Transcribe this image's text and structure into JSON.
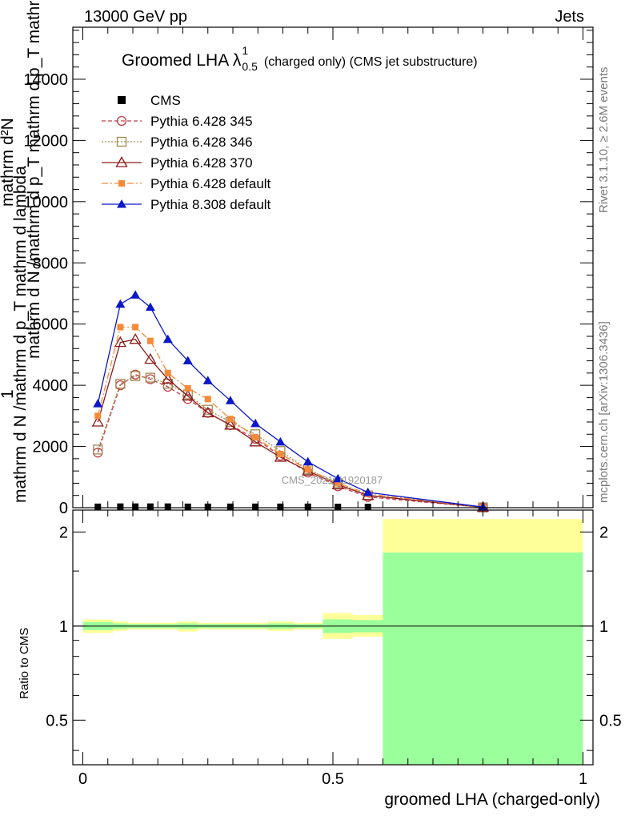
{
  "header": {
    "left": "13000 GeV pp",
    "right": "Jets"
  },
  "side": {
    "events": "Rivet 3.1.10, ≥ 2.6M events",
    "source": "mcplots.cern.ch [arXiv:1306.3436]"
  },
  "watermark": "CMS_2021_I1920187",
  "chart_data": [
    {
      "type": "line",
      "title": "Groomed LHA λ",
      "title_sup": "1",
      "title_sub": "0.5",
      "subtitle": "(charged only) (CMS jet substructure)",
      "ylabel_lines": [
        "mathrm d N /mathrm d p_T mathrm d lambda",
        "1",
        "mathrm d N /mathrm d p_T mathrm d p_T mathrm d lambda",
        "mathrm d²N"
      ],
      "xlim": [
        -0.02,
        1.02
      ],
      "ylim": [
        0,
        15700
      ],
      "yticks": [
        0,
        2000,
        4000,
        6000,
        8000,
        10000,
        12000,
        14000
      ],
      "ytick_labels": [
        "0",
        "2000",
        "4000",
        "6000",
        "8000",
        "10000",
        "12000",
        "14000"
      ],
      "legend_position": "top-left",
      "cms": {
        "name": "CMS",
        "color": "#000000",
        "x": [
          0.03,
          0.075,
          0.105,
          0.135,
          0.17,
          0.21,
          0.25,
          0.295,
          0.345,
          0.395,
          0.45,
          0.51,
          0.57
        ],
        "values": [
          30,
          35,
          35,
          35,
          35,
          30,
          30,
          30,
          30,
          30,
          30,
          25,
          25
        ]
      },
      "series": [
        {
          "name": "Pythia 6.428 345",
          "color": "#c0404a",
          "dash": "5,3",
          "marker": "open-circle",
          "x": [
            0.03,
            0.075,
            0.105,
            0.135,
            0.17,
            0.21,
            0.25,
            0.295,
            0.345,
            0.395,
            0.45,
            0.51,
            0.57,
            0.8
          ],
          "values": [
            1800,
            4000,
            4350,
            4200,
            3950,
            3550,
            3100,
            2700,
            2250,
            1700,
            1150,
            700,
            350,
            10
          ]
        },
        {
          "name": "Pythia 6.428 346",
          "color": "#a08a50",
          "dash": "2,2",
          "marker": "open-square",
          "x": [
            0.03,
            0.075,
            0.105,
            0.135,
            0.17,
            0.21,
            0.25,
            0.295,
            0.345,
            0.395,
            0.45,
            0.51,
            0.57,
            0.8
          ],
          "values": [
            1900,
            4050,
            4300,
            4250,
            4050,
            3700,
            3200,
            2800,
            2400,
            1850,
            1250,
            800,
            400,
            10
          ]
        },
        {
          "name": "Pythia 6.428 370",
          "color": "#8b1a1a",
          "dash": "",
          "marker": "open-triangle",
          "x": [
            0.03,
            0.075,
            0.105,
            0.135,
            0.17,
            0.21,
            0.25,
            0.295,
            0.345,
            0.395,
            0.45,
            0.51,
            0.57,
            0.8
          ],
          "values": [
            2800,
            5400,
            5500,
            4850,
            4200,
            3650,
            3100,
            2700,
            2150,
            1650,
            1200,
            750,
            400,
            10
          ]
        },
        {
          "name": "Pythia 6.428 default",
          "color": "#f58a3a",
          "dash": "8,3,2,3",
          "marker": "filled-square",
          "x": [
            0.03,
            0.075,
            0.105,
            0.135,
            0.17,
            0.21,
            0.25,
            0.295,
            0.345,
            0.395,
            0.45,
            0.51,
            0.57,
            0.8
          ],
          "values": [
            3000,
            5900,
            5900,
            5450,
            4400,
            3900,
            3550,
            2900,
            2300,
            1750,
            1250,
            800,
            450,
            15
          ]
        },
        {
          "name": "Pythia 8.308 default",
          "color": "#0b17c8",
          "dash": "",
          "marker": "filled-triangle",
          "x": [
            0.03,
            0.075,
            0.105,
            0.135,
            0.17,
            0.21,
            0.25,
            0.295,
            0.345,
            0.395,
            0.45,
            0.51,
            0.57,
            0.8
          ],
          "values": [
            3400,
            6650,
            6950,
            6550,
            5500,
            4800,
            4150,
            3500,
            2750,
            2150,
            1500,
            950,
            500,
            20
          ]
        }
      ]
    },
    {
      "type": "area",
      "ylabel": "Ratio to CMS",
      "xlabel": "groomed LHA (charged-only)",
      "xlim": [
        -0.02,
        1.02
      ],
      "ylim": [
        0.36,
        2.35
      ],
      "log_scale_y": true,
      "xticks": [
        0,
        0.5,
        1
      ],
      "xtick_labels": [
        "0",
        "0.5",
        "1"
      ],
      "yticks": [
        0.5,
        1,
        2
      ],
      "ytick_labels": [
        "0.5",
        "1",
        "2"
      ],
      "reference_line": 1,
      "bin_edges": [
        0.0,
        0.06,
        0.09,
        0.12,
        0.15,
        0.19,
        0.23,
        0.27,
        0.32,
        0.37,
        0.42,
        0.48,
        0.54,
        0.6,
        1.0
      ],
      "band_inner": {
        "color": "#9bff9b",
        "low": [
          0.97,
          0.98,
          0.985,
          0.985,
          0.985,
          0.98,
          0.985,
          0.985,
          0.985,
          0.98,
          0.985,
          0.95,
          0.955,
          0.36
        ],
        "high": [
          1.03,
          1.02,
          1.015,
          1.015,
          1.015,
          1.02,
          1.015,
          1.015,
          1.015,
          1.02,
          1.015,
          1.05,
          1.045,
          1.72
        ]
      },
      "band_outer": {
        "color": "#ffff99",
        "low": [
          0.95,
          0.965,
          0.975,
          0.975,
          0.975,
          0.96,
          0.975,
          0.975,
          0.975,
          0.965,
          0.975,
          0.91,
          0.925,
          0.36
        ],
        "high": [
          1.05,
          1.035,
          1.025,
          1.025,
          1.025,
          1.035,
          1.025,
          1.025,
          1.025,
          1.035,
          1.025,
          1.1,
          1.085,
          2.2
        ]
      }
    }
  ]
}
